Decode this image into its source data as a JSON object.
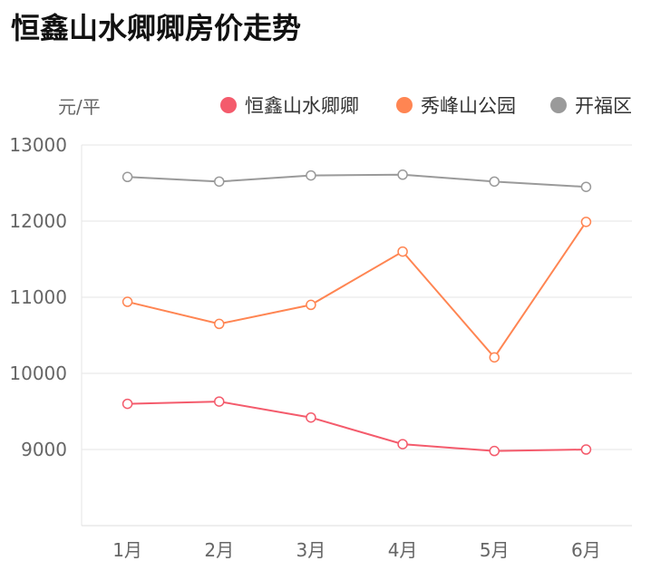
{
  "chart_data": {
    "type": "line",
    "title": "恒鑫山水卿卿房价走势",
    "ylabel": "元/平",
    "categories": [
      "1月",
      "2月",
      "3月",
      "4月",
      "5月",
      "6月"
    ],
    "ylim": [
      8000,
      13000
    ],
    "yticks": [
      9000,
      10000,
      11000,
      12000,
      13000
    ],
    "grid": true,
    "legend": "top-right",
    "series": [
      {
        "name": "恒鑫山水卿卿",
        "color": "#f45b6c",
        "values": [
          9600,
          9630,
          9420,
          9070,
          8980,
          9000
        ]
      },
      {
        "name": "秀峰山公园",
        "color": "#ff8552",
        "values": [
          10940,
          10650,
          10900,
          11600,
          10210,
          11990
        ]
      },
      {
        "name": "开福区",
        "color": "#9a9a9a",
        "values": [
          12580,
          12520,
          12600,
          12610,
          12520,
          12450
        ]
      }
    ]
  }
}
